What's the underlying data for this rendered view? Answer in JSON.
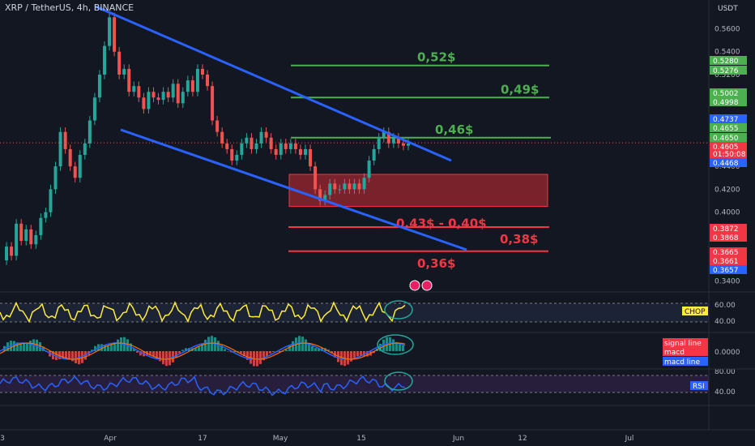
{
  "header": {
    "title": "XRP / TetherUS, 4h, BINANCE",
    "currency": "USDT"
  },
  "colors": {
    "bg": "#131722",
    "up": "#26a69a",
    "down": "#ef5350",
    "channel": "#2962ff",
    "green": "#4caf50",
    "red": "#f23645",
    "zone": "#b22833",
    "chop": "#ffeb3b",
    "rsi": "#2962ff",
    "macd": "#2962ff",
    "signal": "#ff6d00"
  },
  "chart_data": {
    "type": "candlestick",
    "price_axis": {
      "ticks": [
        "0.5600",
        "0.5400",
        "0.5200",
        "0.4400",
        "0.4200",
        "0.4000",
        "0.3400"
      ],
      "ylim": [
        0.334,
        0.578
      ]
    },
    "price_tags": [
      {
        "label": "0.5280",
        "kind": "green"
      },
      {
        "label": "0.5276",
        "kind": "green"
      },
      {
        "label": "0.5002",
        "kind": "green"
      },
      {
        "label": "0.4998",
        "kind": "green"
      },
      {
        "label": "0.4737",
        "kind": "blue"
      },
      {
        "label": "0.4655",
        "kind": "green"
      },
      {
        "label": "0.4650",
        "kind": "green"
      },
      {
        "label": "0.4605",
        "kind": "red"
      },
      {
        "label": "01:50:08",
        "kind": "red"
      },
      {
        "label": "0.4468",
        "kind": "blue"
      },
      {
        "label": "0.3872",
        "kind": "red"
      },
      {
        "label": "0.3868",
        "kind": "red"
      },
      {
        "label": "0.3665",
        "kind": "red"
      },
      {
        "label": "0.3661",
        "kind": "red"
      },
      {
        "label": "0.3657",
        "kind": "blue"
      }
    ],
    "x_axis": {
      "ticks": [
        "3",
        "Apr",
        "17",
        "May",
        "15",
        "Jun",
        "12",
        "Jul"
      ]
    },
    "levels": [
      {
        "label": "0,52$",
        "price": 0.528,
        "color": "green"
      },
      {
        "label": "0,49$",
        "price": 0.5,
        "color": "green"
      },
      {
        "label": "0,46$",
        "price": 0.465,
        "color": "green"
      },
      {
        "label": "0,38$",
        "price": 0.387,
        "color": "red"
      },
      {
        "label": "0,36$",
        "price": 0.366,
        "color": "red"
      }
    ],
    "zone": {
      "label": "0,43$ - 0,40$",
      "high": 0.433,
      "low": 0.405
    },
    "price_path": [
      0.358,
      0.37,
      0.362,
      0.39,
      0.375,
      0.385,
      0.372,
      0.38,
      0.395,
      0.4,
      0.42,
      0.44,
      0.47,
      0.455,
      0.44,
      0.43,
      0.45,
      0.46,
      0.48,
      0.5,
      0.52,
      0.545,
      0.57,
      0.54,
      0.52,
      0.525,
      0.505,
      0.51,
      0.5,
      0.49,
      0.505,
      0.5,
      0.498,
      0.505,
      0.5,
      0.512,
      0.495,
      0.505,
      0.515,
      0.505,
      0.525,
      0.52,
      0.51,
      0.48,
      0.47,
      0.46,
      0.455,
      0.445,
      0.45,
      0.46,
      0.465,
      0.455,
      0.46,
      0.47,
      0.465,
      0.455,
      0.45,
      0.46,
      0.455,
      0.46,
      0.455,
      0.45,
      0.455,
      0.44,
      0.42,
      0.41,
      0.415,
      0.425,
      0.42,
      0.42,
      0.425,
      0.42,
      0.425,
      0.42,
      0.43,
      0.445,
      0.455,
      0.465,
      0.47,
      0.46,
      0.465,
      0.46,
      0.458,
      0.46
    ],
    "indicators": [
      {
        "name": "CHOP",
        "ticks": [
          "60.00",
          "40.00"
        ]
      },
      {
        "name": "MACD",
        "labels": [
          "signal line",
          "macd",
          "macd line"
        ],
        "ticks": [
          "0.0000"
        ]
      },
      {
        "name": "RSI",
        "ticks": [
          "80.00",
          "40.00"
        ]
      }
    ]
  }
}
